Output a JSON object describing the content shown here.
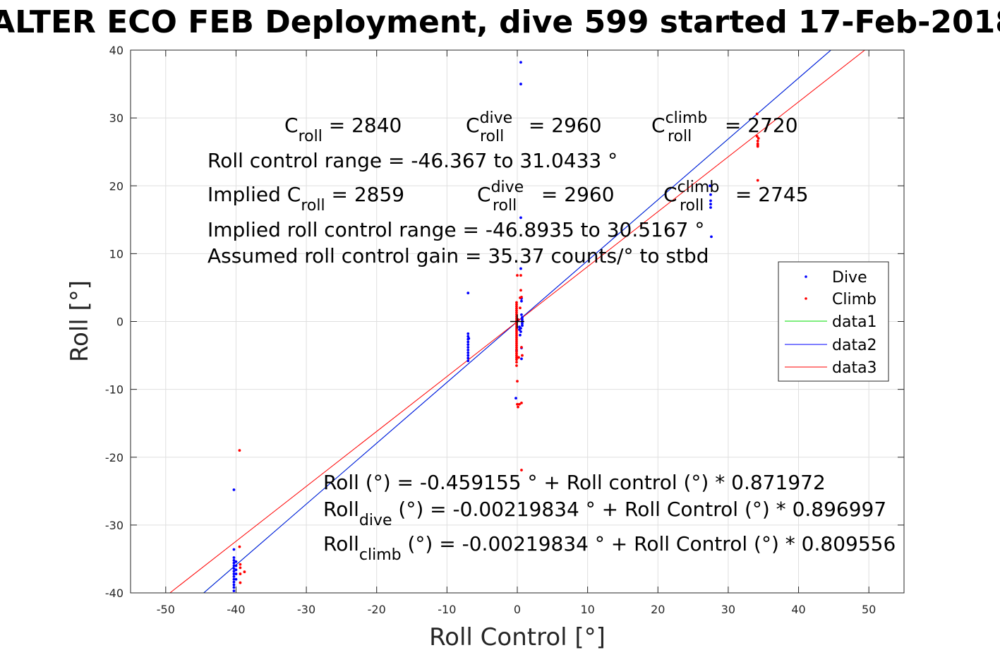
{
  "chart_data": {
    "type": "scatter",
    "title": "ALTER ECO FEB Deployment, dive 599 started 17-Feb-2018",
    "xlabel": "Roll Control [°]",
    "ylabel": "Roll [°]",
    "xlim": [
      -55,
      55
    ],
    "ylim": [
      -40,
      40
    ],
    "xticks": [
      -50,
      -40,
      -30,
      -20,
      -10,
      0,
      10,
      20,
      30,
      40,
      50
    ],
    "yticks": [
      -40,
      -30,
      -20,
      -10,
      0,
      10,
      20,
      30,
      40
    ],
    "grid": true,
    "legend_position": "right",
    "colors": {
      "dive": "#0000ff",
      "climb": "#ff0000",
      "data1": "#00dd00",
      "data2": "#0000ff",
      "data3": "#ff0000"
    },
    "series": [
      {
        "name": "Dive",
        "style": "points",
        "x": [
          -40.3,
          -40.3,
          -40.3,
          -40.3,
          -40.3,
          -40.3,
          -40.3,
          -40.3,
          -40.3,
          -40.3,
          -40.3,
          -40.3,
          -40.3,
          -40.3,
          -40.3,
          -40.0,
          -40.0,
          -40.0,
          -40.0,
          -40.0,
          -7.0,
          -7.0,
          -7.0,
          -7.0,
          -7.0,
          -7.0,
          -7.0,
          -7.0,
          -7.0,
          -7.0,
          -7.0,
          -7.0,
          -6.9,
          0.5,
          0.5,
          0.5,
          0.5,
          0.6,
          0.6,
          0.6,
          0.7,
          0.7,
          0.7,
          0.7,
          0.7,
          0.6,
          0.6,
          0.5,
          0.5,
          0.4,
          0.3,
          0.3,
          -0.2,
          -0.1,
          0.1,
          27.5,
          27.5,
          27.5,
          27.5,
          27.6,
          27.4
        ],
        "y": [
          -24.8,
          -33.6,
          -34.8,
          -35.2,
          -35.6,
          -36.0,
          -36.4,
          -36.8,
          -37.2,
          -37.6,
          -38.0,
          -38.4,
          -38.8,
          -39.2,
          -39.7,
          -35.4,
          -36.0,
          -36.6,
          -37.2,
          -38.0,
          4.2,
          -1.8,
          -2.2,
          -2.6,
          -3.0,
          -3.4,
          -3.8,
          -4.2,
          -4.6,
          -5.0,
          -5.4,
          -5.8,
          -2.5,
          38.2,
          35.0,
          15.3,
          7.8,
          3.0,
          3.4,
          1.0,
          0.6,
          0.3,
          0.0,
          -0.3,
          -0.6,
          -3.9,
          -5.5,
          -1.0,
          -1.5,
          -2.0,
          -0.8,
          -1.2,
          -11.3,
          -4.3,
          0.2,
          18.7,
          17.8,
          17.3,
          16.8,
          12.5,
          20.0
        ]
      },
      {
        "name": "Climb",
        "style": "points",
        "x": [
          -39.5,
          -39.5,
          -39.4,
          -39.4,
          -39.4,
          -39.4,
          -38.8,
          -0.1,
          -0.1,
          -0.1,
          -0.1,
          -0.1,
          -0.1,
          -0.1,
          -0.1,
          -0.1,
          -0.1,
          -0.1,
          -0.1,
          -0.1,
          -0.1,
          -0.1,
          -0.1,
          -0.1,
          -0.1,
          -0.1,
          -0.1,
          -0.1,
          -0.1,
          -0.1,
          -0.1,
          -0.1,
          -0.1,
          -0.1,
          -0.1,
          -0.1,
          -0.1,
          -0.1,
          0.0,
          0.1,
          0.3,
          0.6,
          0.6,
          0.5,
          0.5,
          0.4,
          0.4,
          0.6,
          0.7,
          0.2,
          0.0,
          0.0,
          0.6,
          0.1,
          34.1,
          34.1,
          34.2,
          34.2,
          34.2,
          34.2,
          34.3,
          34.2
        ],
        "y": [
          -19.0,
          -33.2,
          -35.8,
          -36.3,
          -37.2,
          -38.5,
          -36.9,
          2.8,
          2.5,
          2.2,
          1.9,
          1.6,
          1.3,
          1.0,
          0.7,
          0.4,
          0.1,
          -0.2,
          -0.5,
          -0.8,
          -1.1,
          -1.4,
          -1.7,
          -2.0,
          -2.3,
          -2.6,
          -2.9,
          -3.2,
          -3.5,
          -3.8,
          -4.1,
          -4.4,
          -4.7,
          -5.0,
          -5.3,
          -5.6,
          -6.0,
          -6.5,
          -8.8,
          -12.6,
          -12.2,
          -12.0,
          -21.9,
          6.8,
          4.6,
          3.5,
          2.0,
          -3.8,
          -5.0,
          -5.3,
          6.8,
          -12.2,
          3.6,
          0.3,
          30.6,
          27.3,
          26.6,
          26.2,
          25.8,
          20.8,
          27.0,
          26.0
        ]
      },
      {
        "name": "data1",
        "style": "line",
        "x": [
          -45,
          45
        ],
        "y": [
          -40.35,
          40.35
        ]
      },
      {
        "name": "data2",
        "style": "line",
        "x": [
          -44.6,
          46.4
        ],
        "y": [
          -40.01,
          41.62
        ]
      },
      {
        "name": "data3",
        "style": "line",
        "x": [
          -49.4,
          50
        ],
        "y": [
          -40.0,
          40.47
        ]
      }
    ],
    "crosshair": [
      0,
      0
    ]
  },
  "annotations": {
    "c_roll": {
      "main": "C",
      "sub": "roll",
      "rest": " = 2840"
    },
    "c_roll_dive": {
      "main": "C",
      "sup": "dive",
      "sub": "roll",
      "rest": " = 2960"
    },
    "c_roll_climb": {
      "main": "C",
      "sup": "climb",
      "sub": "roll",
      "rest": " = 2720"
    },
    "range": "Roll control range = -46.367 to 31.0433 °",
    "implied_c_roll": {
      "pre": "Implied C",
      "sub": "roll",
      "rest": " = 2859"
    },
    "implied_c_dive": {
      "main": "C",
      "sup": "dive",
      "sub": "roll",
      "rest": " = 2960"
    },
    "implied_c_climb": {
      "main": "C",
      "sup": "climb",
      "sub": "roll",
      "rest": " = 2745"
    },
    "implied_range": "Implied roll control range = -46.8935 to 30.5167 °",
    "gain": "Assumed roll control gain = 35.37 counts/° to stbd",
    "fit_all": "Roll (°) = -0.459155 ° + Roll control (°) * 0.871972",
    "fit_dive": {
      "main": "Roll",
      "sub": "dive",
      "rest": " (°) = -0.00219834 ° + Roll Control (°) * 0.896997"
    },
    "fit_climb": {
      "main": "Roll",
      "sub": "climb",
      "rest": " (°) = -0.00219834 ° + Roll Control (°) * 0.809556"
    }
  }
}
